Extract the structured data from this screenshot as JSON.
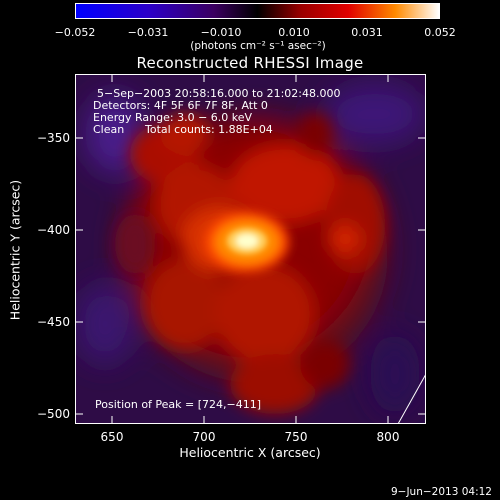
{
  "colorbar": {
    "ticks": [
      "−0.052",
      "−0.031",
      "−0.010",
      "0.010",
      "0.031",
      "0.052"
    ],
    "units": "(photons cm⁻² s⁻¹ asec⁻²)"
  },
  "chart_data": {
    "type": "heatmap",
    "title": "Reconstructed RHESSI Image",
    "xlabel": "Heliocentric X (arcsec)",
    "ylabel": "Heliocentric Y (arcsec)",
    "xlim": [
      630,
      822
    ],
    "ylim": [
      -510,
      -318
    ],
    "xticks": [
      "650",
      "700",
      "750",
      "800"
    ],
    "yticks": [
      "−350",
      "−400",
      "−450",
      "−500"
    ],
    "annotations": {
      "time_range": "5−Sep−2003 20:58:16.000 to 21:02:48.000",
      "detectors": "Detectors: 4F 5F 6F 7F 8F, Att 0",
      "energy_range": "Energy Range: 3.0 − 6.0 keV",
      "clean_label": "Clean",
      "total_counts": "Total counts: 1.88E+04",
      "peak_position": "Position of Peak = [724,−411]"
    },
    "colorbar_range": [
      -0.052,
      0.052
    ],
    "peak": {
      "x": 724,
      "y": -411
    }
  },
  "footer": {
    "date_stamp": "9−Jun−2013 04:12"
  }
}
